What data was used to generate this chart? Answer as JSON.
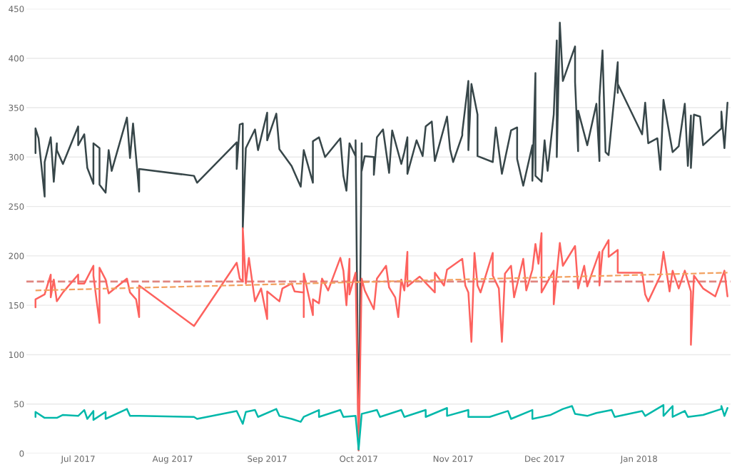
{
  "chart_data": {
    "type": "line",
    "xlim": [
      "2017-06-14",
      "2018-01-31"
    ],
    "ylim": [
      0,
      450
    ],
    "yticks": [
      0,
      50,
      100,
      150,
      200,
      250,
      300,
      350,
      400,
      450
    ],
    "xticks": [
      {
        "value": "2017-07-01",
        "label": "Jul 2017"
      },
      {
        "value": "2017-08-01",
        "label": "Aug 2017"
      },
      {
        "value": "2017-09-01",
        "label": "Sep 2017"
      },
      {
        "value": "2017-10-01",
        "label": "Oct 2017"
      },
      {
        "value": "2017-11-01",
        "label": "Nov 2017"
      },
      {
        "value": "2017-12-01",
        "label": "Dec 2017"
      },
      {
        "value": "2018-01-01",
        "label": "Jan 2018"
      }
    ],
    "grid": "y",
    "ref_lines": [
      {
        "axis": "y",
        "value": 174,
        "color": "#e08580",
        "line_style": "dashed"
      }
    ],
    "series": [
      {
        "color": "#374649",
        "x": [
          "2017-06-17",
          "2017-06-17",
          "2017-06-18",
          "2017-06-20",
          "2017-06-20",
          "2017-06-22",
          "2017-06-23",
          "2017-06-24",
          "2017-06-24",
          "2017-06-26",
          "2017-07-01",
          "2017-07-01",
          "2017-07-03",
          "2017-07-04",
          "2017-07-06",
          "2017-07-06",
          "2017-07-08",
          "2017-07-08",
          "2017-07-10",
          "2017-07-11",
          "2017-07-12",
          "2017-07-17",
          "2017-07-18",
          "2017-07-19",
          "2017-07-21",
          "2017-07-21",
          "2017-08-08",
          "2017-08-09",
          "2017-08-22",
          "2017-08-22",
          "2017-08-23",
          "2017-08-24",
          "2017-08-24",
          "2017-08-25",
          "2017-08-28",
          "2017-08-29",
          "2017-09-01",
          "2017-09-01",
          "2017-09-04",
          "2017-09-05",
          "2017-09-09",
          "2017-09-12",
          "2017-09-13",
          "2017-09-16",
          "2017-09-16",
          "2017-09-18",
          "2017-09-20",
          "2017-09-25",
          "2017-09-26",
          "2017-09-27",
          "2017-09-28",
          "2017-09-30",
          "2017-09-30",
          "2017-10-01",
          "2017-10-02",
          "2017-10-02",
          "2017-10-03",
          "2017-10-06",
          "2017-10-06",
          "2017-10-07",
          "2017-10-09",
          "2017-10-11",
          "2017-10-12",
          "2017-10-15",
          "2017-10-16",
          "2017-10-17",
          "2017-10-17",
          "2017-10-20",
          "2017-10-22",
          "2017-10-23",
          "2017-10-25",
          "2017-10-26",
          "2017-10-30",
          "2017-10-31",
          "2017-11-01",
          "2017-11-04",
          "2017-11-04",
          "2017-11-06",
          "2017-11-06",
          "2017-11-07",
          "2017-11-09",
          "2017-11-09",
          "2017-11-14",
          "2017-11-15",
          "2017-11-17",
          "2017-11-20",
          "2017-11-22",
          "2017-11-22",
          "2017-11-24",
          "2017-11-27",
          "2017-11-27",
          "2017-11-28",
          "2017-11-28",
          "2017-11-30",
          "2017-12-01",
          "2017-12-02",
          "2017-12-04",
          "2017-12-05",
          "2017-12-05",
          "2017-12-06",
          "2017-12-07",
          "2017-12-11",
          "2017-12-11",
          "2017-12-12",
          "2017-12-12",
          "2017-12-15",
          "2017-12-18",
          "2017-12-19",
          "2017-12-19",
          "2017-12-20",
          "2017-12-21",
          "2017-12-22",
          "2017-12-25",
          "2017-12-25",
          "2017-12-25",
          "2018-01-02",
          "2018-01-03",
          "2018-01-04",
          "2018-01-07",
          "2018-01-08",
          "2018-01-09",
          "2018-01-12",
          "2018-01-14",
          "2018-01-16",
          "2018-01-17",
          "2018-01-18",
          "2018-01-18",
          "2018-01-19",
          "2018-01-21",
          "2018-01-22",
          "2018-01-28",
          "2018-01-28",
          "2018-01-29",
          "2018-01-30"
        ],
        "values": [
          304,
          329,
          319,
          260,
          295,
          320,
          275,
          314,
          307,
          293,
          331,
          312,
          323,
          289,
          273,
          314,
          309,
          272,
          264,
          307,
          286,
          340,
          299,
          334,
          265,
          288,
          281,
          274,
          315,
          288,
          333,
          334,
          228,
          309,
          328,
          307,
          345,
          317,
          344,
          308,
          291,
          270,
          307,
          274,
          316,
          320,
          300,
          319,
          281,
          266,
          314,
          301,
          317,
          4,
          314,
          286,
          301,
          300,
          282,
          320,
          328,
          284,
          327,
          293,
          305,
          320,
          283,
          317,
          301,
          331,
          336,
          296,
          341,
          308,
          295,
          322,
          325,
          377,
          307,
          374,
          343,
          301,
          295,
          330,
          283,
          327,
          330,
          298,
          271,
          312,
          276,
          385,
          281,
          275,
          317,
          286,
          343,
          418,
          300,
          436,
          377,
          412,
          376,
          306,
          347,
          312,
          354,
          296,
          360,
          408,
          305,
          302,
          396,
          365,
          374,
          323,
          355,
          314,
          319,
          287,
          358,
          305,
          311,
          354,
          291,
          342,
          289,
          343,
          341,
          312,
          329,
          346,
          309,
          355
        ]
      },
      {
        "color": "#fd625e",
        "x": [
          "2017-06-17",
          "2017-06-17",
          "2017-06-20",
          "2017-06-22",
          "2017-06-22",
          "2017-06-23",
          "2017-06-24",
          "2017-06-26",
          "2017-07-01",
          "2017-07-01",
          "2017-07-03",
          "2017-07-06",
          "2017-07-06",
          "2017-07-08",
          "2017-07-08",
          "2017-07-10",
          "2017-07-11",
          "2017-07-17",
          "2017-07-18",
          "2017-07-20",
          "2017-07-21",
          "2017-07-21",
          "2017-08-08",
          "2017-08-22",
          "2017-08-23",
          "2017-08-24",
          "2017-08-24",
          "2017-08-25",
          "2017-08-26",
          "2017-08-28",
          "2017-08-30",
          "2017-09-01",
          "2017-09-01",
          "2017-09-05",
          "2017-09-06",
          "2017-09-09",
          "2017-09-10",
          "2017-09-13",
          "2017-09-13",
          "2017-09-13",
          "2017-09-16",
          "2017-09-16",
          "2017-09-18",
          "2017-09-19",
          "2017-09-21",
          "2017-09-25",
          "2017-09-26",
          "2017-09-27",
          "2017-09-28",
          "2017-09-28",
          "2017-09-30",
          "2017-10-01",
          "2017-10-02",
          "2017-10-03",
          "2017-10-06",
          "2017-10-07",
          "2017-10-10",
          "2017-10-11",
          "2017-10-13",
          "2017-10-14",
          "2017-10-15",
          "2017-10-16",
          "2017-10-17",
          "2017-10-17",
          "2017-10-21",
          "2017-10-26",
          "2017-10-26",
          "2017-10-29",
          "2017-10-30",
          "2017-11-04",
          "2017-11-05",
          "2017-11-06",
          "2017-11-07",
          "2017-11-08",
          "2017-11-09",
          "2017-11-10",
          "2017-11-14",
          "2017-11-14",
          "2017-11-16",
          "2017-11-17",
          "2017-11-18",
          "2017-11-20",
          "2017-11-21",
          "2017-11-24",
          "2017-11-25",
          "2017-11-27",
          "2017-11-28",
          "2017-11-29",
          "2017-11-30",
          "2017-11-30",
          "2017-12-04",
          "2017-12-04",
          "2017-12-06",
          "2017-12-07",
          "2017-12-11",
          "2017-12-12",
          "2017-12-14",
          "2017-12-15",
          "2017-12-19",
          "2017-12-19",
          "2017-12-20",
          "2017-12-22",
          "2017-12-22",
          "2017-12-25",
          "2017-12-25",
          "2018-01-02",
          "2018-01-03",
          "2018-01-04",
          "2018-01-08",
          "2018-01-09",
          "2018-01-11",
          "2018-01-12",
          "2018-01-14",
          "2018-01-16",
          "2018-01-18",
          "2018-01-18",
          "2018-01-19",
          "2018-01-22",
          "2018-01-26",
          "2018-01-29",
          "2018-01-30"
        ],
        "values": [
          148,
          156,
          161,
          181,
          158,
          176,
          154,
          163,
          181,
          172,
          172,
          190,
          180,
          132,
          188,
          176,
          162,
          177,
          163,
          156,
          138,
          170,
          129,
          193,
          177,
          174,
          228,
          172,
          198,
          154,
          167,
          136,
          164,
          154,
          167,
          172,
          164,
          163,
          138,
          182,
          140,
          156,
          152,
          177,
          165,
          198,
          185,
          150,
          197,
          161,
          183,
          3,
          177,
          165,
          146,
          177,
          190,
          168,
          158,
          138,
          176,
          165,
          204,
          169,
          179,
          163,
          183,
          170,
          186,
          197,
          170,
          163,
          113,
          203,
          170,
          163,
          203,
          180,
          167,
          113,
          182,
          190,
          158,
          197,
          165,
          186,
          212,
          192,
          223,
          163,
          185,
          151,
          213,
          190,
          210,
          167,
          190,
          169,
          204,
          170,
          205,
          216,
          199,
          206,
          183,
          183,
          161,
          154,
          180,
          204,
          164,
          185,
          167,
          185,
          164,
          110,
          180,
          167,
          159,
          185,
          159
        ]
      },
      {
        "color": "#01b8aa",
        "x": [
          "2017-06-17",
          "2017-06-17",
          "2017-06-20",
          "2017-06-24",
          "2017-06-26",
          "2017-07-01",
          "2017-07-03",
          "2017-07-04",
          "2017-07-06",
          "2017-07-06",
          "2017-07-10",
          "2017-07-10",
          "2017-07-17",
          "2017-07-18",
          "2017-07-21",
          "2017-08-08",
          "2017-08-09",
          "2017-08-22",
          "2017-08-24",
          "2017-08-25",
          "2017-08-28",
          "2017-08-29",
          "2017-09-04",
          "2017-09-05",
          "2017-09-09",
          "2017-09-12",
          "2017-09-13",
          "2017-09-18",
          "2017-09-18",
          "2017-09-25",
          "2017-09-26",
          "2017-09-30",
          "2017-10-01",
          "2017-10-02",
          "2017-10-07",
          "2017-10-08",
          "2017-10-15",
          "2017-10-16",
          "2017-10-23",
          "2017-10-23",
          "2017-10-30",
          "2017-10-30",
          "2017-11-06",
          "2017-11-06",
          "2017-11-13",
          "2017-11-19",
          "2017-11-20",
          "2017-11-27",
          "2017-11-27",
          "2017-12-03",
          "2017-12-07",
          "2017-12-10",
          "2017-12-11",
          "2017-12-15",
          "2017-12-18",
          "2017-12-23",
          "2017-12-24",
          "2018-01-02",
          "2018-01-03",
          "2018-01-09",
          "2018-01-09",
          "2018-01-12",
          "2018-01-12",
          "2018-01-16",
          "2018-01-17",
          "2018-01-22",
          "2018-01-28",
          "2018-01-28",
          "2018-01-29",
          "2018-01-30"
        ],
        "values": [
          37,
          42,
          36,
          36,
          39,
          38,
          44,
          35,
          43,
          34,
          42,
          35,
          45,
          38,
          38,
          37,
          35,
          43,
          30,
          42,
          44,
          37,
          45,
          38,
          35,
          32,
          37,
          44,
          37,
          44,
          37,
          38,
          4,
          40,
          44,
          37,
          44,
          37,
          44,
          37,
          46,
          38,
          44,
          37,
          37,
          43,
          35,
          44,
          35,
          39,
          45,
          48,
          40,
          38,
          41,
          44,
          37,
          43,
          38,
          49,
          38,
          48,
          37,
          43,
          37,
          39,
          45,
          48,
          38,
          46
        ]
      },
      {
        "type": "line",
        "line_style": "dashed",
        "color": "#f2a160",
        "x": [
          "2017-06-17",
          "2018-01-30"
        ],
        "values": [
          165,
          183
        ]
      }
    ]
  }
}
